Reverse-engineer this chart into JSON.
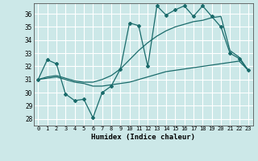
{
  "xlabel": "Humidex (Indice chaleur)",
  "ylabel": "",
  "bg_color": "#cce8e8",
  "line_color": "#1a6b6b",
  "grid_color": "#b8d8d8",
  "xlim": [
    -0.5,
    23.5
  ],
  "ylim": [
    27.5,
    36.8
  ],
  "yticks": [
    28,
    29,
    30,
    31,
    32,
    33,
    34,
    35,
    36
  ],
  "xticks": [
    0,
    1,
    2,
    3,
    4,
    5,
    6,
    7,
    8,
    9,
    10,
    11,
    12,
    13,
    14,
    15,
    16,
    17,
    18,
    19,
    20,
    21,
    22,
    23
  ],
  "series1_x": [
    0,
    1,
    2,
    3,
    4,
    5,
    6,
    7,
    8,
    9,
    10,
    11,
    12,
    13,
    14,
    15,
    16,
    17,
    18,
    19,
    20,
    21,
    22,
    23
  ],
  "series1_y": [
    31.0,
    32.5,
    32.2,
    29.9,
    29.4,
    29.5,
    28.1,
    30.0,
    30.5,
    31.8,
    35.3,
    35.1,
    32.0,
    36.6,
    35.9,
    36.3,
    36.6,
    35.8,
    36.6,
    35.8,
    35.0,
    33.0,
    32.6,
    31.7
  ],
  "series2_x": [
    0,
    1,
    2,
    3,
    4,
    5,
    6,
    7,
    8,
    9,
    10,
    11,
    12,
    13,
    14,
    15,
    16,
    17,
    18,
    19,
    20,
    21,
    22,
    23
  ],
  "series2_y": [
    31.0,
    31.1,
    31.2,
    31.0,
    30.8,
    30.7,
    30.5,
    30.5,
    30.6,
    30.7,
    30.8,
    31.0,
    31.2,
    31.4,
    31.6,
    31.7,
    31.8,
    31.9,
    32.0,
    32.1,
    32.2,
    32.3,
    32.4,
    31.7
  ],
  "series3_x": [
    0,
    1,
    2,
    3,
    4,
    5,
    6,
    7,
    8,
    9,
    10,
    11,
    12,
    13,
    14,
    15,
    16,
    17,
    18,
    19,
    20,
    21,
    22,
    23
  ],
  "series3_y": [
    31.0,
    31.2,
    31.3,
    31.1,
    30.9,
    30.8,
    30.8,
    31.0,
    31.3,
    31.8,
    32.5,
    33.2,
    33.8,
    34.3,
    34.7,
    35.0,
    35.2,
    35.4,
    35.5,
    35.7,
    35.8,
    33.2,
    32.7,
    31.7
  ]
}
